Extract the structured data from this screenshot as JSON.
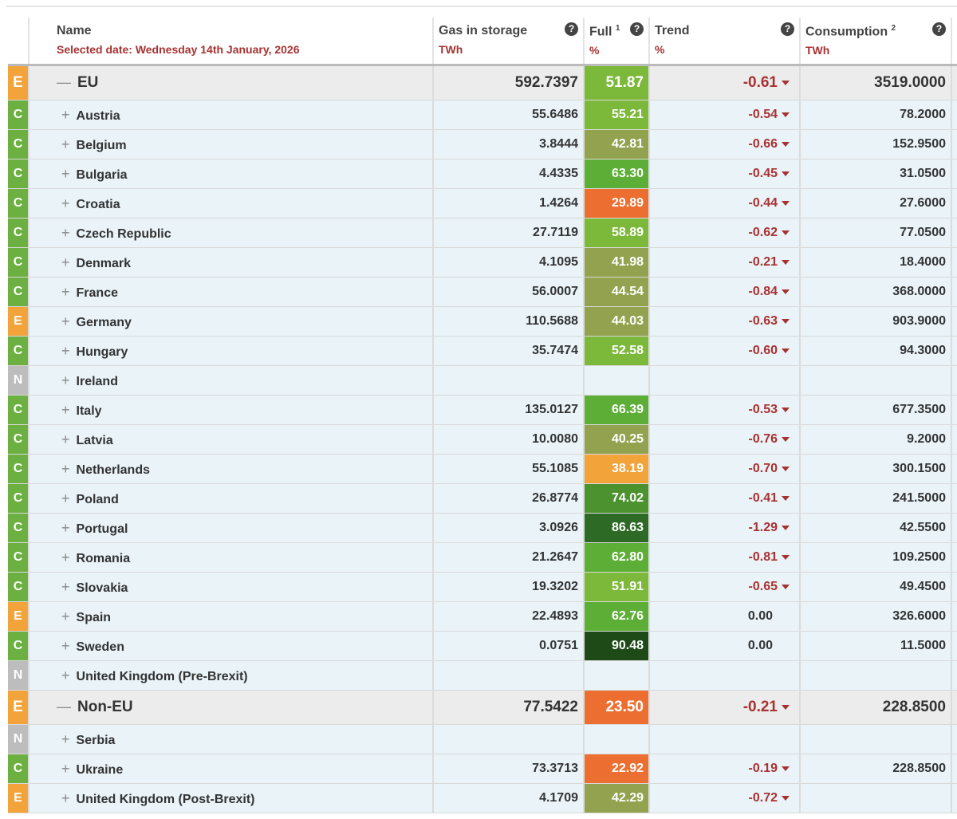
{
  "header": {
    "name": "Name",
    "selected_date": "Selected date: Wednesday 14th January, 2026",
    "gas": "Gas in storage",
    "gas_unit": "TWh",
    "full": "Full",
    "full_sup": "1",
    "full_unit": "%",
    "trend": "Trend",
    "trend_unit": "%",
    "consumption": "Consumption",
    "consumption_sup": "2",
    "consumption_unit": "TWh",
    "help": "?"
  },
  "colors": {
    "E": "#f2a33a",
    "C": "#6cb041",
    "N": "#bdbdbd"
  },
  "rows": [
    {
      "group": true,
      "badge": "E",
      "exp": "—",
      "name": "EU",
      "gas": "592.7397",
      "full": "51.87",
      "fc": "#7cb83a",
      "trend": "-0.61",
      "cons": "3519.0000"
    },
    {
      "badge": "C",
      "exp": "+",
      "name": "Austria",
      "gas": "55.6486",
      "full": "55.21",
      "fc": "#7cb83a",
      "trend": "-0.54",
      "cons": "78.2000"
    },
    {
      "badge": "C",
      "exp": "+",
      "name": "Belgium",
      "gas": "3.8444",
      "full": "42.81",
      "fc": "#93a24f",
      "trend": "-0.66",
      "cons": "152.9500"
    },
    {
      "badge": "C",
      "exp": "+",
      "name": "Bulgaria",
      "gas": "4.4335",
      "full": "63.30",
      "fc": "#5cae36",
      "trend": "-0.45",
      "cons": "31.0500"
    },
    {
      "badge": "C",
      "exp": "+",
      "name": "Croatia",
      "gas": "1.4264",
      "full": "29.89",
      "fc": "#ec6f31",
      "trend": "-0.44",
      "cons": "27.6000"
    },
    {
      "badge": "C",
      "exp": "+",
      "name": "Czech Republic",
      "gas": "27.7119",
      "full": "58.89",
      "fc": "#7cb83a",
      "trend": "-0.62",
      "cons": "77.0500"
    },
    {
      "badge": "C",
      "exp": "+",
      "name": "Denmark",
      "gas": "4.1095",
      "full": "41.98",
      "fc": "#93a24f",
      "trend": "-0.21",
      "cons": "18.4000"
    },
    {
      "badge": "C",
      "exp": "+",
      "name": "France",
      "gas": "56.0007",
      "full": "44.54",
      "fc": "#93a24f",
      "trend": "-0.84",
      "cons": "368.0000"
    },
    {
      "badge": "E",
      "exp": "+",
      "name": "Germany",
      "gas": "110.5688",
      "full": "44.03",
      "fc": "#93a24f",
      "trend": "-0.63",
      "cons": "903.9000"
    },
    {
      "badge": "C",
      "exp": "+",
      "name": "Hungary",
      "gas": "35.7474",
      "full": "52.58",
      "fc": "#7cb83a",
      "trend": "-0.60",
      "cons": "94.3000"
    },
    {
      "badge": "N",
      "exp": "+",
      "name": "Ireland",
      "gas": "",
      "full": "",
      "fc": "",
      "trend": "",
      "cons": ""
    },
    {
      "badge": "C",
      "exp": "+",
      "name": "Italy",
      "gas": "135.0127",
      "full": "66.39",
      "fc": "#5cae36",
      "trend": "-0.53",
      "cons": "677.3500"
    },
    {
      "badge": "C",
      "exp": "+",
      "name": "Latvia",
      "gas": "10.0080",
      "full": "40.25",
      "fc": "#93a24f",
      "trend": "-0.76",
      "cons": "9.2000"
    },
    {
      "badge": "C",
      "exp": "+",
      "name": "Netherlands",
      "gas": "55.1085",
      "full": "38.19",
      "fc": "#f2a33a",
      "trend": "-0.70",
      "cons": "300.1500"
    },
    {
      "badge": "C",
      "exp": "+",
      "name": "Poland",
      "gas": "26.8774",
      "full": "74.02",
      "fc": "#4c922f",
      "trend": "-0.41",
      "cons": "241.5000"
    },
    {
      "badge": "C",
      "exp": "+",
      "name": "Portugal",
      "gas": "3.0926",
      "full": "86.63",
      "fc": "#2d6a25",
      "trend": "-1.29",
      "cons": "42.5500"
    },
    {
      "badge": "C",
      "exp": "+",
      "name": "Romania",
      "gas": "21.2647",
      "full": "62.80",
      "fc": "#5cae36",
      "trend": "-0.81",
      "cons": "109.2500"
    },
    {
      "badge": "C",
      "exp": "+",
      "name": "Slovakia",
      "gas": "19.3202",
      "full": "51.91",
      "fc": "#7cb83a",
      "trend": "-0.65",
      "cons": "49.4500"
    },
    {
      "badge": "E",
      "exp": "+",
      "name": "Spain",
      "gas": "22.4893",
      "full": "62.76",
      "fc": "#5cae36",
      "trend": "0.00",
      "cons": "326.6000"
    },
    {
      "badge": "C",
      "exp": "+",
      "name": "Sweden",
      "gas": "0.0751",
      "full": "90.48",
      "fc": "#1e4a17",
      "trend": "0.00",
      "cons": "11.5000"
    },
    {
      "badge": "N",
      "exp": "+",
      "name": "United Kingdom (Pre-Brexit)",
      "gas": "",
      "full": "",
      "fc": "",
      "trend": "",
      "cons": ""
    },
    {
      "group": true,
      "badge": "E",
      "exp": "—",
      "name": "Non-EU",
      "gas": "77.5422",
      "full": "23.50",
      "fc": "#ec6f31",
      "trend": "-0.21",
      "cons": "228.8500"
    },
    {
      "badge": "N",
      "exp": "+",
      "name": "Serbia",
      "gas": "",
      "full": "",
      "fc": "",
      "trend": "",
      "cons": ""
    },
    {
      "badge": "C",
      "exp": "+",
      "name": "Ukraine",
      "gas": "73.3713",
      "full": "22.92",
      "fc": "#ec6f31",
      "trend": "-0.19",
      "cons": "228.8500"
    },
    {
      "badge": "E",
      "exp": "+",
      "name": "United Kingdom (Post-Brexit)",
      "gas": "4.1709",
      "full": "42.29",
      "fc": "#93a24f",
      "trend": "-0.72",
      "cons": ""
    }
  ]
}
